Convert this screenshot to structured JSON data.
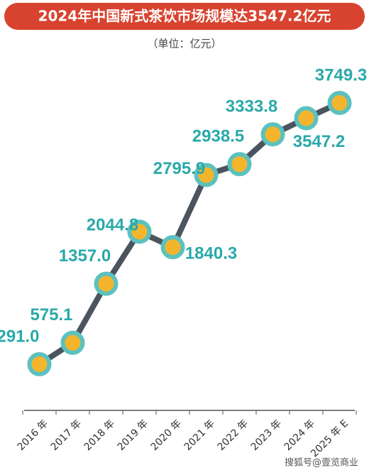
{
  "chart_data": {
    "type": "line",
    "title": "2024年中国新式茶饮市场规模达3547.2亿元",
    "subtitle": "（单位：亿元）",
    "categories": [
      "2016 年",
      "2017 年",
      "2018 年",
      "2019 年",
      "2020 年",
      "2021 年",
      "2022 年",
      "2023 年",
      "2024 年",
      "2025 年 E"
    ],
    "series": [
      {
        "name": "市场规模",
        "color": "#4b5560",
        "values": [
          291.0,
          575.1,
          1357.0,
          2044.8,
          1840.3,
          2795.9,
          2938.5,
          3333.8,
          3547.2,
          3749.3
        ],
        "value_labels": [
          "291.0",
          "575.1",
          "1357.0",
          "2044.8",
          "1840.3",
          "2795.9",
          "2938.5",
          "3333.8",
          "3547.2",
          "3749.3"
        ]
      }
    ],
    "watermark": "搜狐号@壹览商业"
  }
}
